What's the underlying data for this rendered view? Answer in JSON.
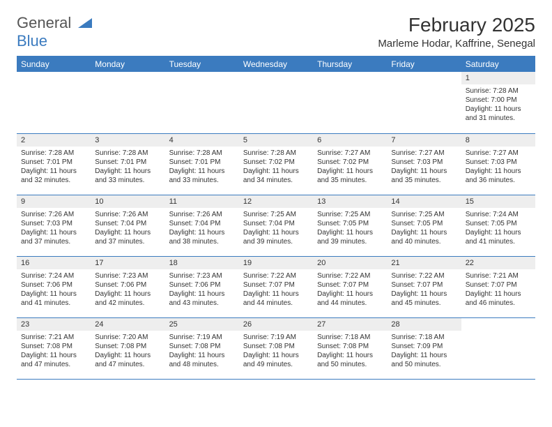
{
  "logo": {
    "word1": "General",
    "word2": "Blue"
  },
  "title": "February 2025",
  "location": "Marleme Hodar, Kaffrine, Senegal",
  "headers": [
    "Sunday",
    "Monday",
    "Tuesday",
    "Wednesday",
    "Thursday",
    "Friday",
    "Saturday"
  ],
  "colors": {
    "header_bg": "#3b7bbf",
    "header_fg": "#ffffff",
    "daynum_bg": "#eeeeee",
    "rule": "#3b7bbf",
    "text": "#333333",
    "logo_gray": "#555555",
    "logo_blue": "#3b7bbf"
  },
  "weeks": [
    [
      null,
      null,
      null,
      null,
      null,
      null,
      {
        "n": "1",
        "sr": "7:28 AM",
        "ss": "7:00 PM",
        "dl": "11 hours and 31 minutes."
      }
    ],
    [
      {
        "n": "2",
        "sr": "7:28 AM",
        "ss": "7:01 PM",
        "dl": "11 hours and 32 minutes."
      },
      {
        "n": "3",
        "sr": "7:28 AM",
        "ss": "7:01 PM",
        "dl": "11 hours and 33 minutes."
      },
      {
        "n": "4",
        "sr": "7:28 AM",
        "ss": "7:01 PM",
        "dl": "11 hours and 33 minutes."
      },
      {
        "n": "5",
        "sr": "7:28 AM",
        "ss": "7:02 PM",
        "dl": "11 hours and 34 minutes."
      },
      {
        "n": "6",
        "sr": "7:27 AM",
        "ss": "7:02 PM",
        "dl": "11 hours and 35 minutes."
      },
      {
        "n": "7",
        "sr": "7:27 AM",
        "ss": "7:03 PM",
        "dl": "11 hours and 35 minutes."
      },
      {
        "n": "8",
        "sr": "7:27 AM",
        "ss": "7:03 PM",
        "dl": "11 hours and 36 minutes."
      }
    ],
    [
      {
        "n": "9",
        "sr": "7:26 AM",
        "ss": "7:03 PM",
        "dl": "11 hours and 37 minutes."
      },
      {
        "n": "10",
        "sr": "7:26 AM",
        "ss": "7:04 PM",
        "dl": "11 hours and 37 minutes."
      },
      {
        "n": "11",
        "sr": "7:26 AM",
        "ss": "7:04 PM",
        "dl": "11 hours and 38 minutes."
      },
      {
        "n": "12",
        "sr": "7:25 AM",
        "ss": "7:04 PM",
        "dl": "11 hours and 39 minutes."
      },
      {
        "n": "13",
        "sr": "7:25 AM",
        "ss": "7:05 PM",
        "dl": "11 hours and 39 minutes."
      },
      {
        "n": "14",
        "sr": "7:25 AM",
        "ss": "7:05 PM",
        "dl": "11 hours and 40 minutes."
      },
      {
        "n": "15",
        "sr": "7:24 AM",
        "ss": "7:05 PM",
        "dl": "11 hours and 41 minutes."
      }
    ],
    [
      {
        "n": "16",
        "sr": "7:24 AM",
        "ss": "7:06 PM",
        "dl": "11 hours and 41 minutes."
      },
      {
        "n": "17",
        "sr": "7:23 AM",
        "ss": "7:06 PM",
        "dl": "11 hours and 42 minutes."
      },
      {
        "n": "18",
        "sr": "7:23 AM",
        "ss": "7:06 PM",
        "dl": "11 hours and 43 minutes."
      },
      {
        "n": "19",
        "sr": "7:22 AM",
        "ss": "7:07 PM",
        "dl": "11 hours and 44 minutes."
      },
      {
        "n": "20",
        "sr": "7:22 AM",
        "ss": "7:07 PM",
        "dl": "11 hours and 44 minutes."
      },
      {
        "n": "21",
        "sr": "7:22 AM",
        "ss": "7:07 PM",
        "dl": "11 hours and 45 minutes."
      },
      {
        "n": "22",
        "sr": "7:21 AM",
        "ss": "7:07 PM",
        "dl": "11 hours and 46 minutes."
      }
    ],
    [
      {
        "n": "23",
        "sr": "7:21 AM",
        "ss": "7:08 PM",
        "dl": "11 hours and 47 minutes."
      },
      {
        "n": "24",
        "sr": "7:20 AM",
        "ss": "7:08 PM",
        "dl": "11 hours and 47 minutes."
      },
      {
        "n": "25",
        "sr": "7:19 AM",
        "ss": "7:08 PM",
        "dl": "11 hours and 48 minutes."
      },
      {
        "n": "26",
        "sr": "7:19 AM",
        "ss": "7:08 PM",
        "dl": "11 hours and 49 minutes."
      },
      {
        "n": "27",
        "sr": "7:18 AM",
        "ss": "7:08 PM",
        "dl": "11 hours and 50 minutes."
      },
      {
        "n": "28",
        "sr": "7:18 AM",
        "ss": "7:09 PM",
        "dl": "11 hours and 50 minutes."
      },
      null
    ]
  ],
  "labels": {
    "sunrise": "Sunrise: ",
    "sunset": "Sunset: ",
    "daylight": "Daylight: "
  }
}
